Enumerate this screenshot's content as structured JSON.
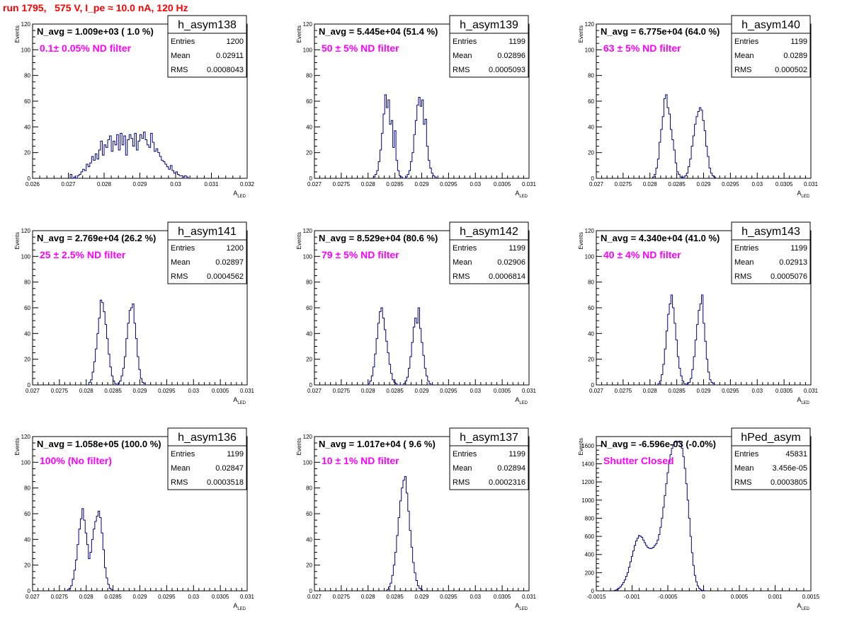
{
  "title": "run 1795,   575 V, I_pe ≈ 10.0 nA, 120 Hz",
  "colors": {
    "title": "#ff0000",
    "filter_label": "#ff00ff",
    "hist_line": "#000080"
  },
  "chart_data": [
    {
      "type": "histogram",
      "name": "h_asym138",
      "navg": "N_avg = 1.009e+03 ( 1.0 %)",
      "filter": "0.1± 0.05% ND filter",
      "stats": {
        "entries": "1200",
        "mean": "0.02911",
        "rms": "0.0008043"
      },
      "xlabel": "A",
      "xlabel_sub": "LED",
      "ylabel": "Events",
      "xlim": [
        0.026,
        0.032
      ],
      "ylim": [
        0,
        120
      ],
      "xticks": [
        0.026,
        0.027,
        0.028,
        0.029,
        0.03,
        0.031,
        0.032
      ],
      "xtick_labels": [
        "0.026",
        "0.027",
        "0.028",
        "0.029",
        "0.03",
        "0.031",
        "0.032"
      ],
      "yticks": [
        0,
        20,
        40,
        60,
        80,
        100,
        120
      ],
      "ytick_labels": [
        "0",
        "20",
        "40",
        "60",
        "80",
        "100",
        "120"
      ],
      "bin_start": 0.02705,
      "bin_width": 5e-05,
      "values": [
        3,
        0,
        1,
        0,
        2,
        3,
        5,
        7,
        6,
        11,
        9,
        12,
        17,
        14,
        19,
        15,
        22,
        29,
        18,
        26,
        24,
        30,
        33,
        21,
        29,
        26,
        34,
        22,
        35,
        26,
        33,
        18,
        30,
        34,
        31,
        25,
        35,
        22,
        29,
        34,
        31,
        36,
        30,
        26,
        24,
        35,
        28,
        21,
        23,
        20,
        17,
        14,
        13,
        11,
        9,
        7,
        10,
        6,
        4,
        5,
        3,
        2,
        2,
        1,
        2,
        1
      ]
    },
    {
      "type": "histogram",
      "name": "h_asym139",
      "navg": "N_avg = 5.445e+04 (51.4 %)",
      "filter": "50 ± 5% ND filter",
      "stats": {
        "entries": "1199",
        "mean": "0.02896",
        "rms": "0.0005093"
      },
      "xlabel": "A",
      "xlabel_sub": "LED",
      "ylabel": "Events",
      "xlim": [
        0.027,
        0.031
      ],
      "ylim": [
        0,
        120
      ],
      "xticks": [
        0.027,
        0.0275,
        0.028,
        0.0285,
        0.029,
        0.0295,
        0.03,
        0.0305,
        0.031
      ],
      "xtick_labels": [
        "0.027",
        "0.0275",
        "0.028",
        "0.0285",
        "0.029",
        "0.0295",
        "0.03",
        "0.0305",
        "0.031"
      ],
      "yticks": [
        0,
        20,
        40,
        60,
        80,
        100,
        120
      ],
      "ytick_labels": [
        "0",
        "20",
        "40",
        "60",
        "80",
        "100",
        "120"
      ],
      "bin_start": 0.0281,
      "bin_width": 3e-05,
      "values": [
        1,
        3,
        6,
        13,
        22,
        35,
        50,
        65,
        55,
        61,
        42,
        45,
        24,
        37,
        14,
        6,
        2,
        1,
        0,
        0,
        1,
        3,
        6,
        13,
        20,
        34,
        45,
        57,
        63,
        56,
        61,
        42,
        46,
        25,
        14,
        8,
        4,
        2,
        1
      ]
    },
    {
      "type": "histogram",
      "name": "h_asym140",
      "navg": "N_avg = 6.775e+04 (64.0 %)",
      "filter": "63 ± 5% ND filter",
      "stats": {
        "entries": "1199",
        "mean": "0.0289",
        "rms": "0.000502"
      },
      "xlabel": "A",
      "xlabel_sub": "LED",
      "ylabel": "Events",
      "xlim": [
        0.027,
        0.031
      ],
      "ylim": [
        0,
        120
      ],
      "xticks": [
        0.027,
        0.0275,
        0.028,
        0.0285,
        0.029,
        0.0295,
        0.03,
        0.0305,
        0.031
      ],
      "xtick_labels": [
        "0.027",
        "0.0275",
        "0.028",
        "0.0285",
        "0.029",
        "0.0295",
        "0.03",
        "0.0305",
        "0.031"
      ],
      "yticks": [
        0,
        20,
        40,
        60,
        80,
        100,
        120
      ],
      "ytick_labels": [
        "0",
        "20",
        "40",
        "60",
        "80",
        "100",
        "120"
      ],
      "bin_start": 0.02805,
      "bin_width": 3e-05,
      "values": [
        1,
        3,
        8,
        15,
        28,
        38,
        48,
        62,
        65,
        55,
        50,
        38,
        30,
        22,
        12,
        5,
        3,
        1,
        0,
        1,
        2,
        4,
        9,
        15,
        25,
        33,
        42,
        48,
        52,
        55,
        53,
        45,
        37,
        25,
        17,
        8,
        4,
        2,
        1
      ]
    },
    {
      "type": "histogram",
      "name": "h_asym141",
      "navg": "N_avg = 2.769e+04 (26.2 %)",
      "filter": "25 ± 2.5% ND filter",
      "stats": {
        "entries": "1200",
        "mean": "0.02897",
        "rms": "0.0004562"
      },
      "xlabel": "A",
      "xlabel_sub": "LED",
      "ylabel": "Events",
      "xlim": [
        0.027,
        0.031
      ],
      "ylim": [
        0,
        120
      ],
      "xticks": [
        0.027,
        0.0275,
        0.028,
        0.0285,
        0.029,
        0.0295,
        0.03,
        0.0305,
        0.031
      ],
      "xtick_labels": [
        "0.027",
        "0.0275",
        "0.028",
        "0.0285",
        "0.029",
        "0.0295",
        "0.03",
        "0.0305",
        "0.031"
      ],
      "yticks": [
        0,
        20,
        40,
        60,
        80,
        100,
        120
      ],
      "ytick_labels": [
        "0",
        "20",
        "40",
        "60",
        "80",
        "100",
        "120"
      ],
      "bin_start": 0.02805,
      "bin_width": 3e-05,
      "values": [
        2,
        4,
        10,
        18,
        28,
        40,
        52,
        66,
        64,
        57,
        47,
        36,
        24,
        14,
        7,
        3,
        1,
        0,
        1,
        3,
        7,
        13,
        22,
        36,
        48,
        58,
        60,
        63,
        48,
        36,
        22,
        12,
        5,
        2,
        1
      ]
    },
    {
      "type": "histogram",
      "name": "h_asym142",
      "navg": "N_avg = 8.529e+04 (80.6 %)",
      "filter": "79 ± 5% ND filter",
      "stats": {
        "entries": "1199",
        "mean": "0.02906",
        "rms": "0.0006814"
      },
      "xlabel": "A",
      "xlabel_sub": "LED",
      "ylabel": "Events",
      "xlim": [
        0.027,
        0.031
      ],
      "ylim": [
        0,
        120
      ],
      "xticks": [
        0.027,
        0.0275,
        0.028,
        0.0285,
        0.029,
        0.0295,
        0.03,
        0.0305,
        0.031
      ],
      "xtick_labels": [
        "0.027",
        "0.0275",
        "0.028",
        "0.0285",
        "0.029",
        "0.0295",
        "0.03",
        "0.0305",
        "0.031"
      ],
      "yticks": [
        0,
        20,
        40,
        60,
        80,
        100,
        120
      ],
      "ytick_labels": [
        "0",
        "20",
        "40",
        "60",
        "80",
        "100",
        "120"
      ],
      "bin_start": 0.028,
      "bin_width": 3e-05,
      "values": [
        1,
        3,
        7,
        14,
        24,
        36,
        48,
        57,
        60,
        52,
        43,
        34,
        25,
        16,
        9,
        4,
        2,
        1,
        0,
        0,
        0,
        0,
        1,
        3,
        6,
        13,
        22,
        33,
        45,
        52,
        48,
        60,
        44,
        33,
        23,
        13,
        7,
        3,
        1
      ]
    },
    {
      "type": "histogram",
      "name": "h_asym143",
      "navg": "N_avg = 4.340e+04 (41.0 %)",
      "filter": "40 ± 4% ND filter",
      "stats": {
        "entries": "1199",
        "mean": "0.02913",
        "rms": "0.0005076"
      },
      "xlabel": "A",
      "xlabel_sub": "LED",
      "ylabel": "Events",
      "xlim": [
        0.027,
        0.031
      ],
      "ylim": [
        0,
        120
      ],
      "xticks": [
        0.027,
        0.0275,
        0.028,
        0.0285,
        0.029,
        0.0295,
        0.03,
        0.0305,
        0.031
      ],
      "xtick_labels": [
        "0.027",
        "0.0275",
        "0.028",
        "0.0285",
        "0.029",
        "0.0295",
        "0.03",
        "0.0305",
        "0.031"
      ],
      "yticks": [
        0,
        20,
        40,
        60,
        80,
        100,
        120
      ],
      "ytick_labels": [
        "0",
        "20",
        "40",
        "60",
        "80",
        "100",
        "120"
      ],
      "bin_start": 0.02815,
      "bin_width": 3e-05,
      "values": [
        1,
        3,
        8,
        16,
        28,
        42,
        55,
        63,
        70,
        60,
        48,
        35,
        22,
        13,
        7,
        3,
        1,
        0,
        1,
        2,
        5,
        12,
        22,
        35,
        47,
        58,
        63,
        70,
        48,
        34,
        20,
        10,
        4,
        2,
        1
      ]
    },
    {
      "type": "histogram",
      "name": "h_asym136",
      "navg": "N_avg = 1.058e+05 (100.0 %)",
      "filter": "100% (No filter)",
      "stats": {
        "entries": "1199",
        "mean": "0.02847",
        "rms": "0.0003518"
      },
      "xlabel": "A",
      "xlabel_sub": "LED",
      "ylabel": "Events",
      "xlim": [
        0.027,
        0.031
      ],
      "ylim": [
        0,
        120
      ],
      "xticks": [
        0.027,
        0.0275,
        0.028,
        0.0285,
        0.029,
        0.0295,
        0.03,
        0.0305,
        0.031
      ],
      "xtick_labels": [
        "0.027",
        "0.0275",
        "0.028",
        "0.0285",
        "0.029",
        "0.0295",
        "0.03",
        "0.0305",
        "0.031"
      ],
      "yticks": [
        0,
        20,
        40,
        60,
        80,
        100,
        120
      ],
      "ytick_labels": [
        "0",
        "20",
        "40",
        "60",
        "80",
        "100",
        "120"
      ],
      "bin_start": 0.02765,
      "bin_width": 3e-05,
      "values": [
        1,
        2,
        4,
        9,
        16,
        24,
        36,
        48,
        56,
        64,
        55,
        45,
        36,
        25,
        30,
        40,
        48,
        54,
        58,
        62,
        57,
        45,
        32,
        18,
        10,
        5,
        2,
        1
      ]
    },
    {
      "type": "histogram",
      "name": "h_asym137",
      "navg": "N_avg = 1.017e+04 ( 9.6 %)",
      "filter": "10 ± 1% ND filter",
      "stats": {
        "entries": "1199",
        "mean": "0.02894",
        "rms": "0.0002316"
      },
      "xlabel": "A",
      "xlabel_sub": "LED",
      "ylabel": "Events",
      "xlim": [
        0.027,
        0.031
      ],
      "ylim": [
        0,
        120
      ],
      "xticks": [
        0.027,
        0.0275,
        0.028,
        0.0285,
        0.029,
        0.0295,
        0.03,
        0.0305,
        0.031
      ],
      "xtick_labels": [
        "0.027",
        "0.0275",
        "0.028",
        "0.0285",
        "0.029",
        "0.0295",
        "0.03",
        "0.0305",
        "0.031"
      ],
      "yticks": [
        0,
        20,
        40,
        60,
        80,
        100,
        120
      ],
      "ytick_labels": [
        "0",
        "20",
        "40",
        "60",
        "80",
        "100",
        "120"
      ],
      "bin_start": 0.02835,
      "bin_width": 3e-05,
      "values": [
        1,
        3,
        6,
        12,
        20,
        30,
        43,
        57,
        70,
        80,
        86,
        89,
        76,
        62,
        47,
        34,
        22,
        14,
        8,
        4,
        2,
        1
      ]
    },
    {
      "type": "histogram",
      "name": "hPed_asym",
      "navg": "N_avg = -6.596e-03 (-0.0%)",
      "filter": "Shutter Closed",
      "stats": {
        "entries": "45831",
        "mean": "3.456e-05",
        "rms": "0.0003805"
      },
      "xlabel": "A",
      "xlabel_sub": "LED",
      "ylabel": "Events",
      "xlim": [
        -0.0015,
        0.0015
      ],
      "ylim": [
        0,
        1700
      ],
      "xticks": [
        -0.0015,
        -0.001,
        -0.0005,
        0,
        0.0005,
        0.001,
        0.0015
      ],
      "xtick_labels": [
        "-0.0015",
        "-0.001",
        "-0.0005",
        "0",
        "0.0005",
        "0.001",
        "0.0015"
      ],
      "yticks": [
        0,
        200,
        400,
        600,
        800,
        1000,
        1200,
        1400,
        1600
      ],
      "ytick_labels": [
        "0",
        "200",
        "400",
        "600",
        "800",
        "1000",
        "1200",
        "1400",
        "1600"
      ],
      "bin_start": -0.00125,
      "bin_width": 2e-05,
      "values": [
        5,
        10,
        18,
        30,
        45,
        65,
        90,
        120,
        160,
        200,
        260,
        320,
        380,
        440,
        500,
        550,
        580,
        610,
        600,
        590,
        560,
        530,
        500,
        480,
        470,
        465,
        470,
        480,
        500,
        520,
        560,
        620,
        700,
        800,
        920,
        1050,
        1180,
        1300,
        1420,
        1500,
        1570,
        1610,
        1640,
        1650,
        1640,
        1650,
        1620,
        1570,
        1480,
        1350,
        1180,
        1000,
        800,
        600,
        420,
        280,
        170,
        100,
        55,
        28,
        14,
        6,
        3,
        1
      ]
    }
  ]
}
